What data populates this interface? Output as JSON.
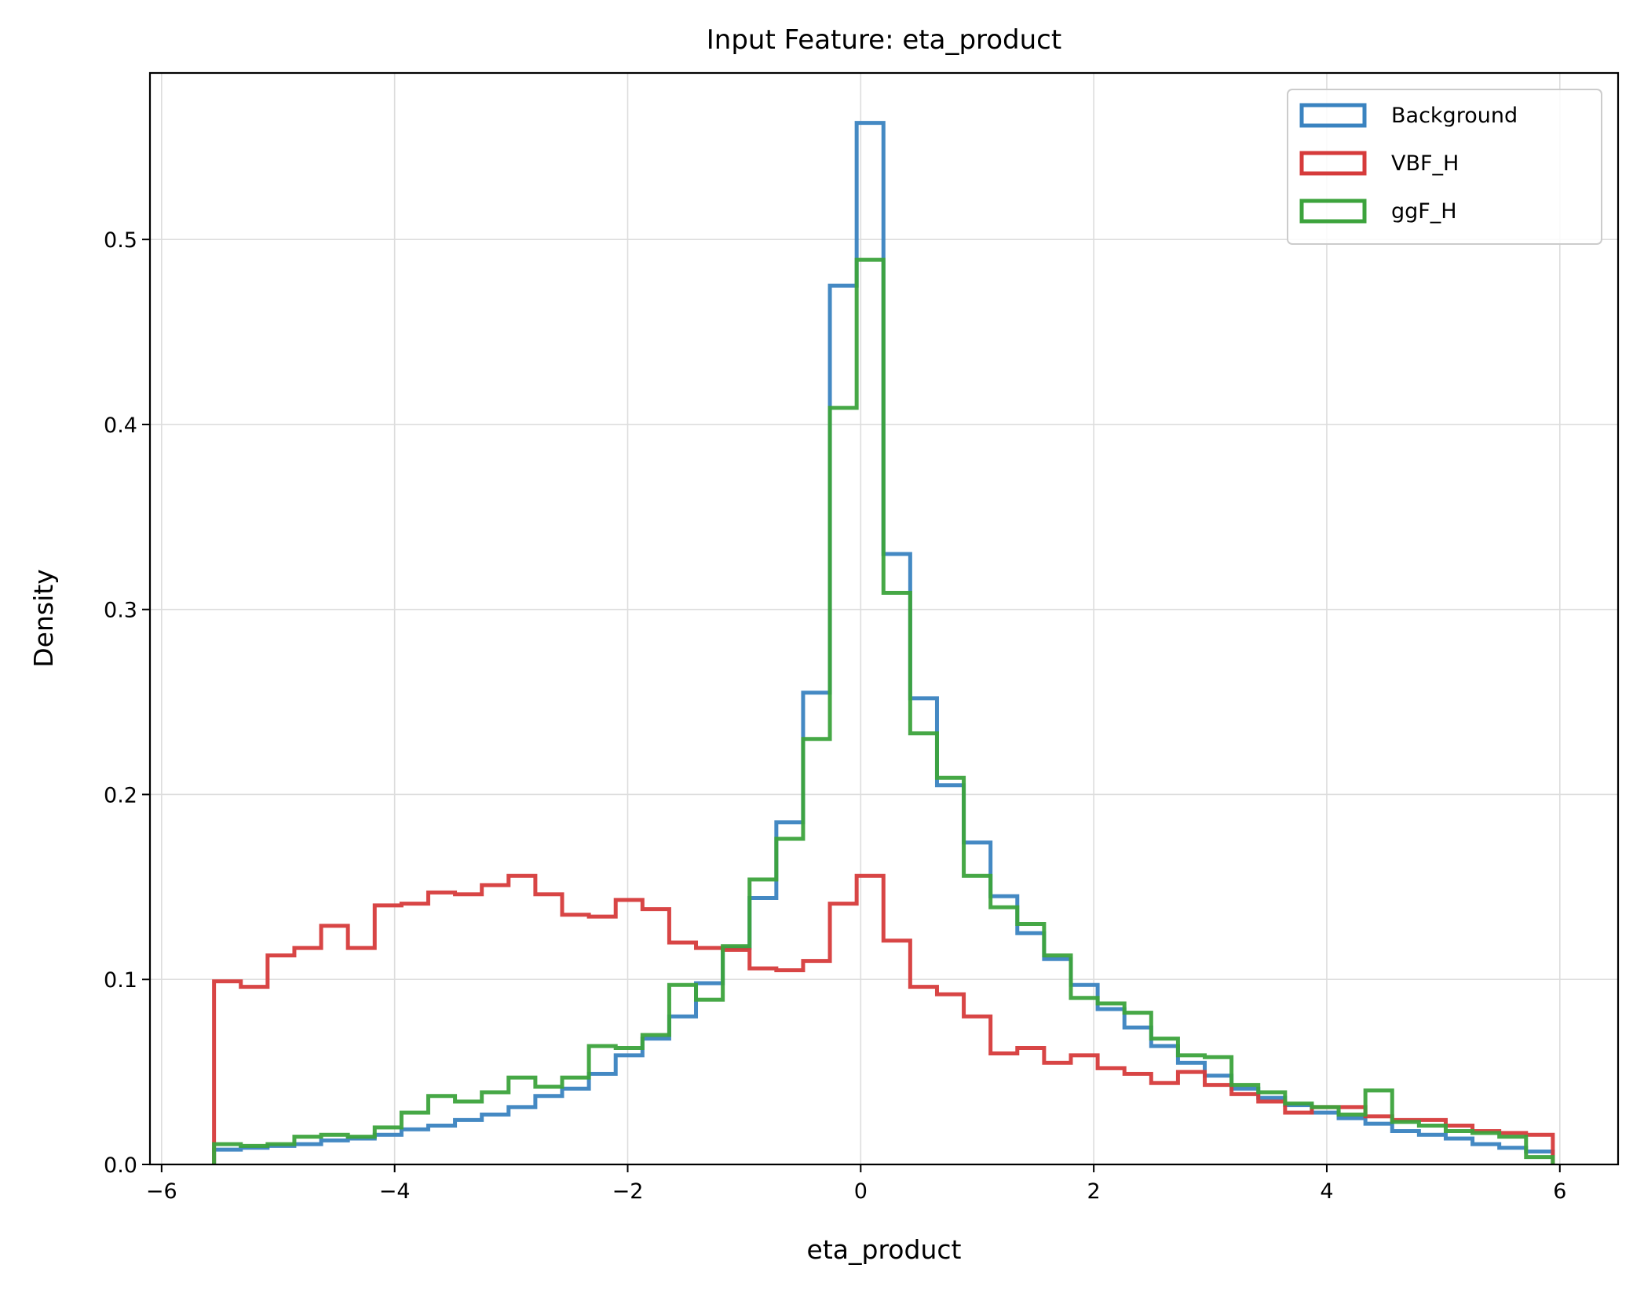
{
  "chart_data": {
    "type": "step-histogram",
    "title": "Input Feature: eta_product",
    "xlabel": "eta_product",
    "ylabel": "Density",
    "xlim": [
      -6.1,
      6.5
    ],
    "ylim": [
      0,
      0.59
    ],
    "xticks": [
      -6,
      -4,
      -2,
      0,
      2,
      4,
      6
    ],
    "xtick_labels": [
      "−6",
      "−4",
      "−2",
      "0",
      "2",
      "4",
      "6"
    ],
    "yticks": [
      0.0,
      0.1,
      0.2,
      0.3,
      0.4,
      0.5
    ],
    "ytick_labels": [
      "0.0",
      "0.1",
      "0.2",
      "0.3",
      "0.4",
      "0.5"
    ],
    "grid": true,
    "legend_position": "top-right",
    "bins": {
      "start": -5.55,
      "width": 0.2298,
      "count": 50
    },
    "series": [
      {
        "name": "Background",
        "color": "#3a83c0",
        "values": [
          0.008,
          0.009,
          0.01,
          0.011,
          0.013,
          0.014,
          0.016,
          0.019,
          0.021,
          0.024,
          0.027,
          0.031,
          0.037,
          0.041,
          0.049,
          0.059,
          0.068,
          0.08,
          0.098,
          0.117,
          0.144,
          0.185,
          0.255,
          0.475,
          0.563,
          0.33,
          0.252,
          0.205,
          0.174,
          0.145,
          0.125,
          0.111,
          0.097,
          0.084,
          0.074,
          0.064,
          0.055,
          0.048,
          0.041,
          0.036,
          0.032,
          0.028,
          0.025,
          0.022,
          0.018,
          0.016,
          0.014,
          0.011,
          0.009,
          0.007
        ]
      },
      {
        "name": "VBF_H",
        "color": "#d63b3b",
        "values": [
          0.099,
          0.096,
          0.113,
          0.117,
          0.129,
          0.117,
          0.14,
          0.141,
          0.147,
          0.146,
          0.151,
          0.156,
          0.146,
          0.135,
          0.134,
          0.143,
          0.138,
          0.12,
          0.117,
          0.116,
          0.106,
          0.105,
          0.11,
          0.141,
          0.156,
          0.121,
          0.096,
          0.092,
          0.08,
          0.06,
          0.063,
          0.055,
          0.059,
          0.052,
          0.049,
          0.044,
          0.05,
          0.043,
          0.038,
          0.034,
          0.028,
          0.031,
          0.031,
          0.026,
          0.024,
          0.024,
          0.021,
          0.018,
          0.017,
          0.016
        ]
      },
      {
        "name": "ggF_H",
        "color": "#3ca33c",
        "values": [
          0.011,
          0.01,
          0.011,
          0.015,
          0.016,
          0.015,
          0.02,
          0.028,
          0.037,
          0.034,
          0.039,
          0.047,
          0.042,
          0.047,
          0.064,
          0.063,
          0.07,
          0.097,
          0.089,
          0.118,
          0.154,
          0.176,
          0.23,
          0.409,
          0.489,
          0.309,
          0.233,
          0.209,
          0.156,
          0.139,
          0.13,
          0.113,
          0.09,
          0.087,
          0.082,
          0.068,
          0.059,
          0.058,
          0.043,
          0.039,
          0.033,
          0.031,
          0.027,
          0.04,
          0.023,
          0.021,
          0.018,
          0.017,
          0.015,
          0.004
        ]
      }
    ]
  }
}
